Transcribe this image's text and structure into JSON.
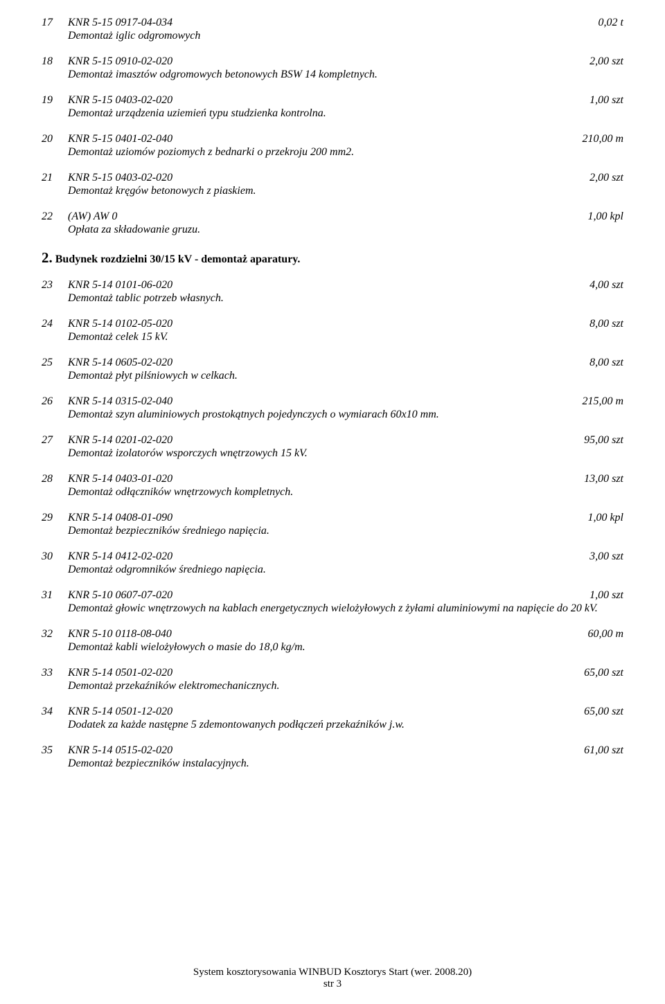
{
  "items": [
    {
      "num": "17",
      "code": "KNR 5-15 0917-04-034",
      "qty": "0,02 t",
      "desc": "Demontaż iglic odgromowych"
    },
    {
      "num": "18",
      "code": "KNR 5-15 0910-02-020",
      "qty": "2,00 szt",
      "desc": "Demontaż imasztów odgromowych betonowych BSW 14 kompletnych."
    },
    {
      "num": "19",
      "code": "KNR 5-15 0403-02-020",
      "qty": "1,00 szt",
      "desc": "Demontaż urządzenia uziemień typu studzienka kontrolna."
    },
    {
      "num": "20",
      "code": "KNR 5-15 0401-02-040",
      "qty": "210,00 m",
      "desc": "Demontaż uziomów poziomych z bednarki o przekroju 200 mm2."
    },
    {
      "num": "21",
      "code": "KNR 5-15 0403-02-020",
      "qty": "2,00 szt",
      "desc": "Demontaż kręgów betonowych z piaskiem."
    },
    {
      "num": "22",
      "code": "(AW) AW 0",
      "qty": "1,00 kpl",
      "desc": "Opłata za składowanie gruzu."
    }
  ],
  "section2": {
    "big": "2.",
    "rest": " Budynek rozdzielni 30/15 kV - demontaż aparatury."
  },
  "items2": [
    {
      "num": "23",
      "code": "KNR 5-14 0101-06-020",
      "qty": "4,00 szt",
      "desc": "Demontaż tablic potrzeb własnych."
    },
    {
      "num": "24",
      "code": "KNR 5-14 0102-05-020",
      "qty": "8,00 szt",
      "desc": "Demontaż celek 15 kV."
    },
    {
      "num": "25",
      "code": "KNR 5-14 0605-02-020",
      "qty": "8,00 szt",
      "desc": "Demontaż płyt pilśniowych w celkach."
    },
    {
      "num": "26",
      "code": "KNR 5-14 0315-02-040",
      "qty": "215,00 m",
      "desc": "Demontaż szyn aluminiowych prostokątnych pojedynczych o wymiarach 60x10 mm."
    },
    {
      "num": "27",
      "code": "KNR 5-14 0201-02-020",
      "qty": "95,00 szt",
      "desc": "Demontaż izolatorów wsporczych wnętrzowych 15 kV."
    },
    {
      "num": "28",
      "code": "KNR 5-14 0403-01-020",
      "qty": "13,00 szt",
      "desc": "Demontaż odłączników wnętrzowych kompletnych."
    },
    {
      "num": "29",
      "code": "KNR 5-14 0408-01-090",
      "qty": "1,00 kpl",
      "desc": "Demontaż bezpieczników średniego napięcia."
    },
    {
      "num": "30",
      "code": "KNR 5-14 0412-02-020",
      "qty": "3,00 szt",
      "desc": "Demontaż odgromników średniego napięcia."
    },
    {
      "num": "31",
      "code": "KNR 5-10 0607-07-020",
      "qty": "1,00 szt",
      "desc": "Demontaż głowic wnętrzowych na kablach energetycznych wielożyłowych z żyłami aluminiowymi na napięcie do 20 kV."
    },
    {
      "num": "32",
      "code": "KNR 5-10 0118-08-040",
      "qty": "60,00 m",
      "desc": "Demontaż kabli wielożyłowych o masie do 18,0 kg/m."
    },
    {
      "num": "33",
      "code": "KNR 5-14 0501-02-020",
      "qty": "65,00 szt",
      "desc": "Demontaż przekaźników elektromechanicznych."
    },
    {
      "num": "34",
      "code": "KNR 5-14 0501-12-020",
      "qty": "65,00 szt",
      "desc": "Dodatek za każde następne 5 zdemontowanych podłączeń przekaźników j.w."
    },
    {
      "num": "35",
      "code": "KNR 5-14 0515-02-020",
      "qty": "61,00 szt",
      "desc": "Demontaż bezpieczników instalacyjnych."
    }
  ],
  "footer": {
    "line1": "System kosztorysowania WINBUD Kosztorys Start (wer. 2008.20)",
    "line2": "str 3"
  }
}
